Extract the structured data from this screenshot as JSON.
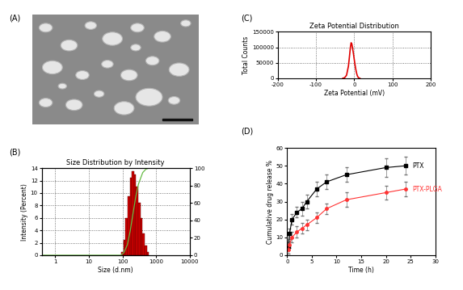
{
  "chart_data": [
    {
      "type": "image",
      "panel_label": "(A)"
    },
    {
      "type": "histogram",
      "panel_label": "(B)",
      "title": "Size Distribution by Intensity",
      "x_label": "Size (d.nm)",
      "y_label": "Intensity (Percent)",
      "log": "x",
      "grid": true,
      "bins": [
        91.3,
        106.0,
        122.4,
        141.8,
        164.2,
        190.1,
        220.2,
        255.0,
        295.3,
        342.0,
        396.1,
        458.7,
        531.2,
        615.1
      ],
      "counts": [
        0.5,
        2.5,
        6.0,
        9.5,
        12.5,
        13.5,
        13.0,
        11.0,
        8.5,
        6.0,
        3.5,
        1.5,
        0.5
      ],
      "color": "#cc0000",
      "xlim": [
        0.4,
        10000
      ],
      "xticks": [
        1,
        10,
        100,
        1000,
        10000
      ],
      "ylim": [
        0,
        14
      ],
      "yticks": [
        0,
        2,
        4,
        6,
        8,
        10,
        12,
        14
      ],
      "y2lim": [
        0,
        100
      ],
      "y2ticks": [
        0,
        20,
        40,
        60,
        80,
        100
      ],
      "series": [
        {
          "axis": "y2",
          "color": "#66bb44",
          "line_style": "solid",
          "x": [
            0.4,
            90,
            110,
            140,
            170,
            200,
            250,
            300,
            400,
            500,
            600,
            10000
          ],
          "values": [
            0,
            0,
            3,
            12,
            28,
            45,
            68,
            82,
            95,
            99,
            100,
            100
          ]
        }
      ]
    },
    {
      "type": "line",
      "panel_label": "(C)",
      "title": "Zeta Potential Distribution",
      "x_label": "Zeta Potential (mV)",
      "y_label": "Total Counts",
      "grid": true,
      "x": [
        -30,
        -25,
        -20,
        -15,
        -12,
        -10,
        -8,
        -6,
        -4,
        -2,
        0,
        2,
        4,
        6,
        8,
        10,
        12,
        15
      ],
      "values": [
        0,
        2000,
        10000,
        40000,
        75000,
        100000,
        115000,
        110000,
        95000,
        80000,
        62000,
        45000,
        30000,
        18000,
        9000,
        4000,
        1500,
        0
      ],
      "color": "#e00000",
      "line_style": "solid",
      "xlim": [
        -200,
        200
      ],
      "xticks": [
        -200,
        -100,
        0,
        100,
        200
      ],
      "ylim": [
        0,
        150000
      ],
      "yticks": [
        0,
        50000,
        100000,
        150000
      ]
    },
    {
      "type": "line",
      "panel_label": "(D)",
      "x_label": "Time (h)",
      "y_label": "Cumulative drug release %",
      "xlim": [
        0,
        30
      ],
      "xticks": [
        0,
        5,
        10,
        15,
        20,
        25,
        30
      ],
      "ylim": [
        0,
        60
      ],
      "yticks": [
        0,
        10,
        20,
        30,
        40,
        50,
        60
      ],
      "series": [
        {
          "name": "PTX",
          "color": "#000000",
          "marker": "s",
          "line_style": "solid",
          "x": [
            0.25,
            0.5,
            1,
            2,
            3,
            4,
            6,
            8,
            12,
            20,
            24
          ],
          "values": [
            5,
            12,
            20,
            24,
            26,
            30,
            37,
            41,
            45,
            49,
            50
          ],
          "errors": [
            2,
            3,
            3,
            3,
            4,
            4,
            4,
            4,
            4,
            5,
            5
          ]
        },
        {
          "name": "PTX-PLGA",
          "color": "#ff3333",
          "marker": "o",
          "line_style": "solid",
          "x": [
            0.25,
            0.5,
            1,
            2,
            3,
            4,
            6,
            8,
            12,
            20,
            24
          ],
          "values": [
            3,
            6,
            10,
            13,
            15,
            17,
            21,
            26,
            31,
            35,
            37
          ],
          "errors": [
            2,
            2,
            3,
            3,
            3,
            3,
            3,
            3,
            4,
            4,
            4
          ]
        }
      ]
    }
  ]
}
